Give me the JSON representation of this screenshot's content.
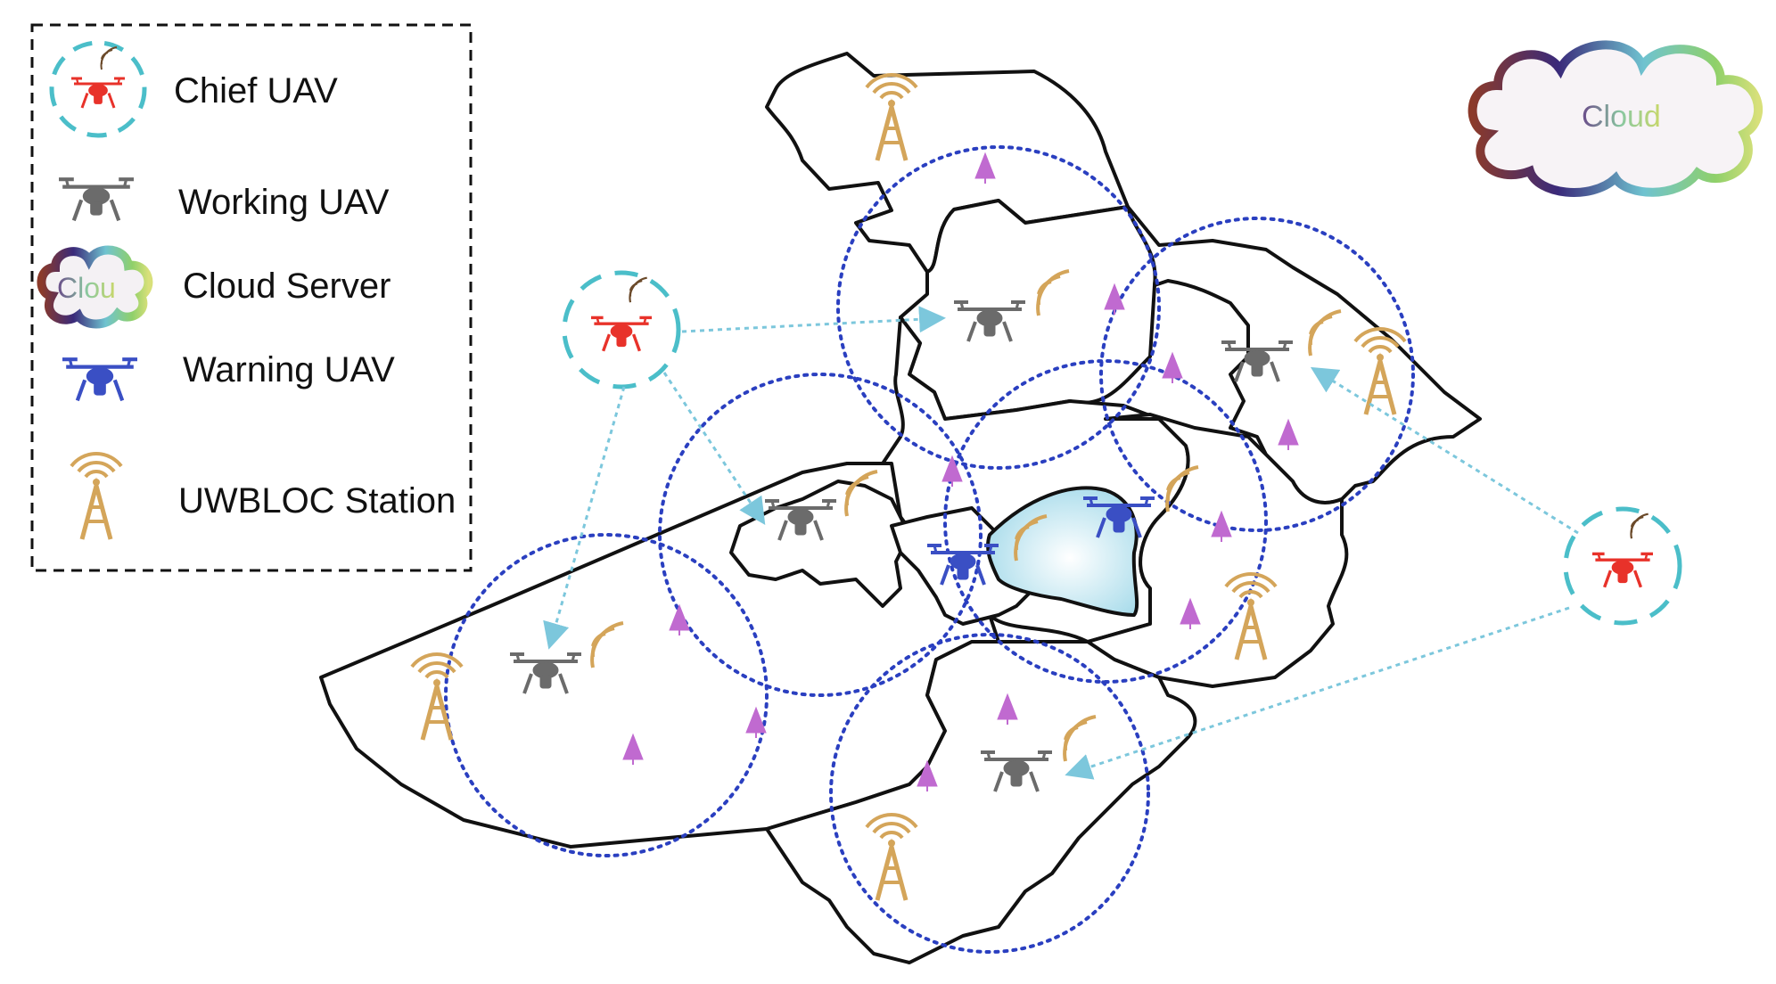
{
  "legend": {
    "items": [
      {
        "label": "Chief UAV",
        "icon": "chief-uav-icon"
      },
      {
        "label": "Working UAV",
        "icon": "working-uav-icon"
      },
      {
        "label": "Cloud Server",
        "icon": "cloud-server-icon"
      },
      {
        "label": "Warning UAV",
        "icon": "warning-uav-icon"
      },
      {
        "label": "UWBLOC Station",
        "icon": "uwbloc-station-icon"
      }
    ],
    "cloud_icon_text": "Clou"
  },
  "cloud": {
    "label": "Cloud"
  },
  "colors": {
    "chief_uav": "#e8322a",
    "working_uav": "#6b6b6b",
    "warning_uav": "#3a4fc4",
    "station": "#d4a55a",
    "coverage_circle": "#2a3fc0",
    "link_arrow": "#7cc7dc",
    "chief_ring": "#4bbec9",
    "tree": "#c06ad0",
    "lake": "#bfe6f0",
    "region_border": "#111111",
    "cloud_gradient": [
      "#8b3a2a",
      "#3a2a7a",
      "#6fc3d0",
      "#8fd06a",
      "#d8e07a"
    ]
  }
}
